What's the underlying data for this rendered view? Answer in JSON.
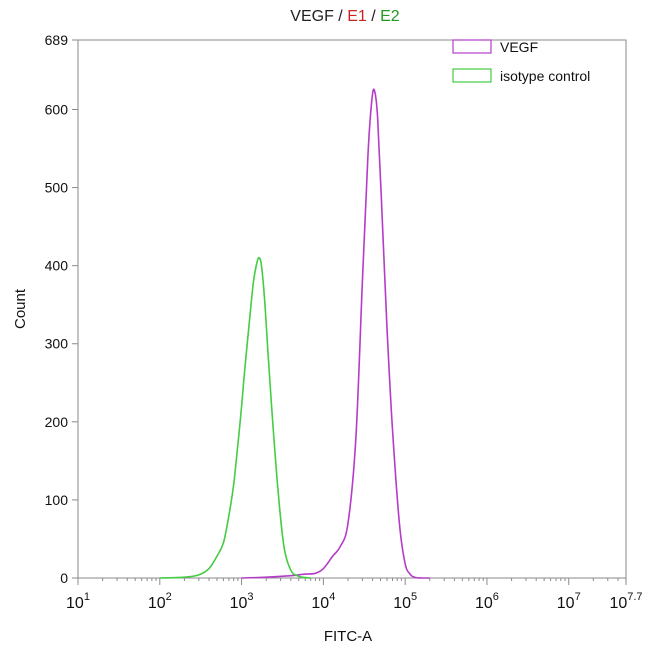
{
  "chart_data": {
    "type": "line",
    "title_parts": [
      {
        "text": "VEGF",
        "color": "#222222"
      },
      {
        "text": " / ",
        "color": "#222222"
      },
      {
        "text": "E1",
        "color": "#cc2222"
      },
      {
        "text": " / ",
        "color": "#222222"
      },
      {
        "text": "E2",
        "color": "#229922"
      }
    ],
    "xlabel": "FITC-A",
    "ylabel": "Count",
    "x_scale": "log10",
    "xlim": [
      10,
      50118723
    ],
    "ylim": [
      0,
      689
    ],
    "x_ticks": [
      {
        "base": "10",
        "exp": "1",
        "value": 10
      },
      {
        "base": "10",
        "exp": "2",
        "value": 100
      },
      {
        "base": "10",
        "exp": "3",
        "value": 1000
      },
      {
        "base": "10",
        "exp": "4",
        "value": 10000
      },
      {
        "base": "10",
        "exp": "5",
        "value": 100000
      },
      {
        "base": "10",
        "exp": "6",
        "value": 1000000
      },
      {
        "base": "10",
        "exp": "7",
        "value": 10000000
      },
      {
        "base": "10",
        "exp": "7.7",
        "value": 50118723
      }
    ],
    "y_ticks": [
      0,
      100,
      200,
      300,
      400,
      500,
      600,
      689
    ],
    "grid": false,
    "legend_position": "top-right",
    "series": [
      {
        "name": "VEGF",
        "color": "#b53cc8",
        "x": [
          1000,
          2000,
          4000,
          6000,
          8000,
          10000,
          13000,
          16000,
          20000,
          25000,
          30000,
          35000,
          39000,
          42000,
          46000,
          52000,
          60000,
          70000,
          85000,
          100000,
          115000,
          130000,
          160000,
          200000
        ],
        "y": [
          0,
          1,
          3,
          5,
          6,
          12,
          28,
          40,
          70,
          180,
          380,
          540,
          610,
          625,
          590,
          470,
          320,
          190,
          70,
          18,
          5,
          1,
          0,
          0
        ]
      },
      {
        "name": "isotype control",
        "color": "#44cc44",
        "x": [
          100,
          200,
          300,
          400,
          500,
          600,
          700,
          800,
          900,
          1000,
          1100,
          1250,
          1400,
          1550,
          1650,
          1750,
          1900,
          2100,
          2400,
          2800,
          3300,
          4000,
          4800,
          5500,
          7000
        ],
        "y": [
          0,
          1,
          4,
          12,
          28,
          45,
          80,
          120,
          170,
          220,
          270,
          330,
          380,
          405,
          410,
          400,
          360,
          290,
          200,
          110,
          40,
          10,
          3,
          1,
          0
        ]
      }
    ]
  }
}
